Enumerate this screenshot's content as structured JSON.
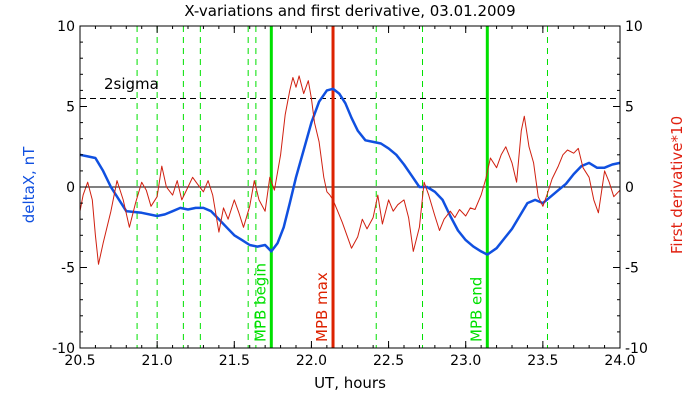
{
  "chart_data": {
    "type": "line",
    "title": "X-variations and first derivative, 03.01.2009",
    "xlabel": "UT, hours",
    "ylabel_left": "deltaX, nT",
    "ylabel_right": "First derivative*10",
    "xlim": [
      20.5,
      24.0
    ],
    "ylim": [
      -10,
      10
    ],
    "x_ticks": [
      "20.5",
      "21.0",
      "21.5",
      "22.0",
      "22.5",
      "23.0",
      "23.5",
      "24.0"
    ],
    "y_ticks": [
      "10",
      "5",
      "0",
      "-5",
      "-10"
    ],
    "threshold": {
      "label": "2sigma",
      "value": 5.5
    },
    "markers": [
      {
        "label": "MPB begin",
        "x": 21.74,
        "color": "#00e000"
      },
      {
        "label": "MPB max",
        "x": 22.14,
        "color": "#dd2200"
      },
      {
        "label": "MPB end",
        "x": 23.14,
        "color": "#00e000"
      }
    ],
    "dashed_markers_x": [
      20.87,
      21.0,
      21.17,
      21.28,
      21.59,
      21.64,
      22.42,
      22.72,
      23.53
    ],
    "series": [
      {
        "name": "deltaX, nT",
        "color": "#1050e0",
        "x": [
          20.5,
          20.55,
          20.6,
          20.65,
          20.7,
          20.8,
          20.9,
          21.0,
          21.05,
          21.1,
          21.15,
          21.2,
          21.25,
          21.3,
          21.35,
          21.4,
          21.45,
          21.5,
          21.55,
          21.6,
          21.65,
          21.7,
          21.74,
          21.78,
          21.82,
          21.86,
          21.9,
          21.95,
          22.0,
          22.05,
          22.1,
          22.14,
          22.18,
          22.22,
          22.26,
          22.3,
          22.35,
          22.4,
          22.45,
          22.5,
          22.55,
          22.6,
          22.65,
          22.7,
          22.75,
          22.8,
          22.85,
          22.9,
          22.95,
          23.0,
          23.05,
          23.1,
          23.14,
          23.2,
          23.25,
          23.3,
          23.35,
          23.4,
          23.45,
          23.5,
          23.55,
          23.6,
          23.65,
          23.7,
          23.75,
          23.8,
          23.85,
          23.9,
          23.95,
          24.0
        ],
        "values": [
          2.0,
          1.9,
          1.8,
          1.0,
          0.0,
          -1.5,
          -1.6,
          -1.8,
          -1.7,
          -1.5,
          -1.3,
          -1.4,
          -1.3,
          -1.3,
          -1.5,
          -2.0,
          -2.5,
          -3.0,
          -3.3,
          -3.6,
          -3.7,
          -3.6,
          -4.0,
          -3.5,
          -2.5,
          -1.0,
          0.6,
          2.3,
          4.0,
          5.3,
          6.0,
          6.1,
          5.8,
          5.2,
          4.3,
          3.5,
          2.9,
          2.8,
          2.7,
          2.4,
          2.0,
          1.4,
          0.7,
          0.0,
          0.0,
          -0.3,
          -0.8,
          -1.8,
          -2.7,
          -3.3,
          -3.7,
          -4.0,
          -4.2,
          -3.8,
          -3.2,
          -2.6,
          -1.8,
          -1.0,
          -0.8,
          -1.0,
          -0.6,
          -0.2,
          0.2,
          0.8,
          1.3,
          1.5,
          1.2,
          1.2,
          1.4,
          1.5
        ]
      },
      {
        "name": "First derivative*10",
        "color": "#d02010",
        "x": [
          20.5,
          20.52,
          20.55,
          20.58,
          20.6,
          20.62,
          20.65,
          20.7,
          20.74,
          20.78,
          20.82,
          20.86,
          20.9,
          20.93,
          20.96,
          21.0,
          21.03,
          21.06,
          21.1,
          21.13,
          21.16,
          21.2,
          21.23,
          21.26,
          21.3,
          21.33,
          21.36,
          21.4,
          21.43,
          21.46,
          21.5,
          21.53,
          21.56,
          21.6,
          21.63,
          21.66,
          21.7,
          21.73,
          21.76,
          21.8,
          21.83,
          21.86,
          21.88,
          21.9,
          21.92,
          21.95,
          21.98,
          22.0,
          22.02,
          22.05,
          22.08,
          22.1,
          22.12,
          22.14,
          22.17,
          22.2,
          22.23,
          22.26,
          22.3,
          22.33,
          22.36,
          22.4,
          22.43,
          22.46,
          22.5,
          22.53,
          22.56,
          22.6,
          22.63,
          22.66,
          22.7,
          22.73,
          22.76,
          22.8,
          22.83,
          22.86,
          22.9,
          22.93,
          22.96,
          23.0,
          23.03,
          23.06,
          23.1,
          23.13,
          23.16,
          23.2,
          23.23,
          23.26,
          23.3,
          23.33,
          23.36,
          23.38,
          23.41,
          23.44,
          23.47,
          23.5,
          23.53,
          23.56,
          23.6,
          23.63,
          23.66,
          23.7,
          23.73,
          23.76,
          23.8,
          23.83,
          23.86,
          23.9,
          23.93,
          23.96,
          24.0
        ],
        "values": [
          -1.5,
          -0.5,
          0.3,
          -0.8,
          -3.0,
          -4.8,
          -3.5,
          -1.5,
          0.4,
          -0.8,
          -2.5,
          -1.0,
          0.3,
          -0.2,
          -1.2,
          -0.6,
          1.3,
          0.0,
          -0.5,
          0.4,
          -0.8,
          0.0,
          0.6,
          0.2,
          -0.3,
          0.4,
          -0.5,
          -2.8,
          -1.3,
          -2.0,
          -0.8,
          -1.6,
          -2.5,
          -1.2,
          0.4,
          -0.8,
          -1.5,
          0.6,
          -0.2,
          2.0,
          4.5,
          6.0,
          6.8,
          6.2,
          6.9,
          5.8,
          6.6,
          5.5,
          4.0,
          2.8,
          0.6,
          -0.3,
          -0.5,
          -0.8,
          -1.5,
          -2.2,
          -3.0,
          -3.8,
          -3.1,
          -2.0,
          -2.6,
          -1.9,
          -0.5,
          -2.3,
          -0.8,
          -1.5,
          -1.1,
          -0.8,
          -1.9,
          -4.0,
          -2.5,
          0.3,
          -0.5,
          -1.8,
          -2.7,
          -2.0,
          -1.5,
          -1.9,
          -1.4,
          -1.8,
          -1.3,
          -1.4,
          -0.5,
          0.5,
          1.8,
          1.2,
          2.0,
          2.5,
          1.5,
          0.3,
          3.5,
          4.4,
          2.5,
          1.5,
          -0.6,
          -1.2,
          -0.4,
          0.5,
          1.3,
          2.0,
          2.3,
          2.1,
          2.4,
          1.2,
          0.6,
          -0.8,
          -1.6,
          1.0,
          0.3,
          -0.6,
          -0.2
        ]
      }
    ]
  }
}
